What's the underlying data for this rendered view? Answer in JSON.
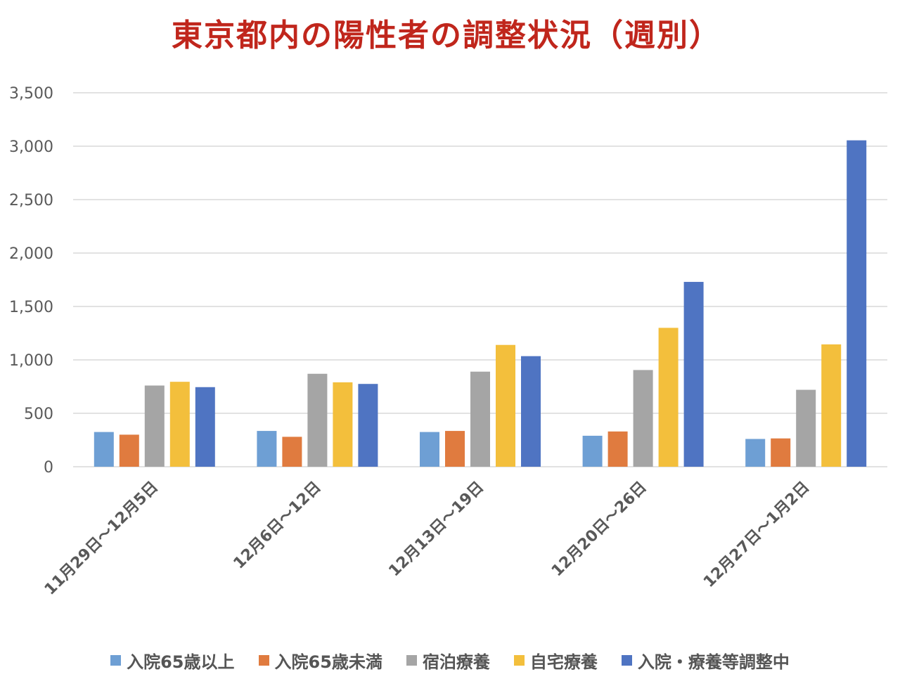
{
  "chart_data": {
    "type": "bar",
    "title": "東京都内の陽性者の調整状況（週別）",
    "title_color": "#c0261c",
    "categories": [
      "11月29日～12月5日",
      "12月6日～12日",
      "12月13日～19日",
      "12月20日～26日",
      "12月27日～1月2日"
    ],
    "series": [
      {
        "name": "入院65歳以上",
        "color": "#6e9fd4",
        "values": [
          325,
          335,
          325,
          290,
          260
        ]
      },
      {
        "name": "入院65歳未満",
        "color": "#e07b3f",
        "values": [
          300,
          280,
          335,
          330,
          265
        ]
      },
      {
        "name": "宿泊療養",
        "color": "#a5a5a5",
        "values": [
          760,
          870,
          890,
          905,
          720
        ]
      },
      {
        "name": "自宅療養",
        "color": "#f3bf3c",
        "values": [
          795,
          790,
          1140,
          1300,
          1145
        ]
      },
      {
        "name": "入院・療養等調整中",
        "color": "#4f74c2",
        "values": [
          745,
          775,
          1035,
          1730,
          3055
        ]
      }
    ],
    "ylim": [
      0,
      3500
    ],
    "yticks": [
      "0",
      "500",
      "1,000",
      "1,500",
      "2,000",
      "2,500",
      "3,000",
      "3,500"
    ],
    "ytick_values": [
      0,
      500,
      1000,
      1500,
      2000,
      2500,
      3000,
      3500
    ],
    "grid": true,
    "legend_position": "bottom",
    "xlabel": "",
    "ylabel": ""
  }
}
